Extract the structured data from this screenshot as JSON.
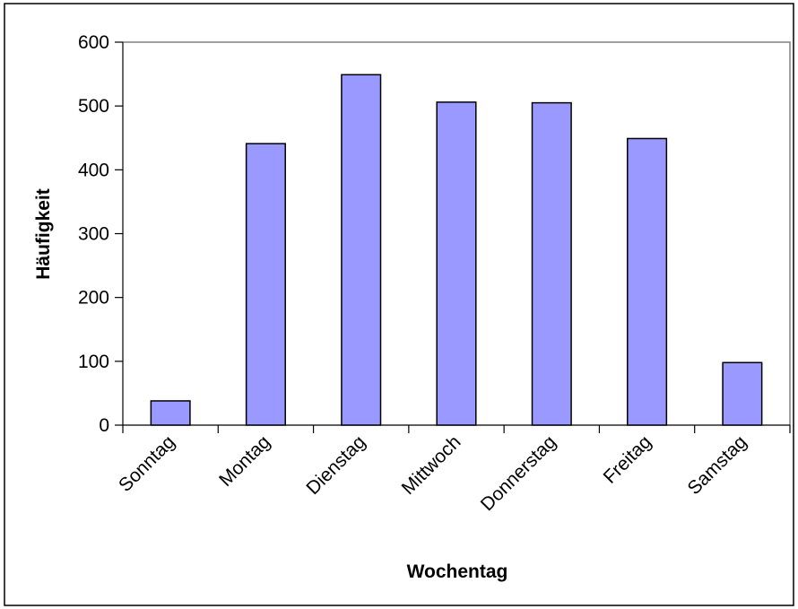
{
  "chart_data": {
    "type": "bar",
    "title": "",
    "xlabel": "Wochentag",
    "ylabel": "Häufigkeit",
    "categories": [
      "Sonntag",
      "Montag",
      "Dienstag",
      "Mittwoch",
      "Donnerstag",
      "Freitag",
      "Samstag"
    ],
    "values": [
      38,
      441,
      549,
      506,
      505,
      449,
      98
    ],
    "ylim": [
      0,
      600
    ],
    "yticks": [
      0,
      100,
      200,
      300,
      400,
      500,
      600
    ],
    "grid": false,
    "legend": "none",
    "bar_color": "#9999ff"
  }
}
